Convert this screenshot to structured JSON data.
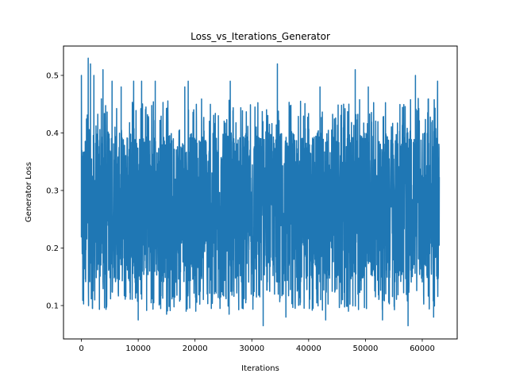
{
  "chart_data": {
    "type": "line",
    "title": "Loss_vs_Iterations_Generator",
    "xlabel": "Iterations",
    "ylabel": "Generator Loss",
    "xlim": [
      -3150,
      66150
    ],
    "ylim": [
      0.042,
      0.551
    ],
    "xticks": [
      0,
      10000,
      20000,
      30000,
      40000,
      50000,
      60000
    ],
    "xtick_labels": [
      "0",
      "10000",
      "20000",
      "30000",
      "40000",
      "50000",
      "60000"
    ],
    "yticks": [
      0.1,
      0.2,
      0.3,
      0.4,
      0.5
    ],
    "ytick_labels": [
      "0.1",
      "0.2",
      "0.3",
      "0.4",
      "0.5"
    ],
    "grid": false,
    "series": [
      {
        "name": "Generator Loss",
        "color": "#1f77b4",
        "x_range": [
          0,
          63000
        ],
        "approx_stats": {
          "typical_min": 0.1,
          "typical_max": 0.42,
          "overall_min": 0.065,
          "overall_max": 0.53,
          "center": 0.24
        },
        "peaks": [
          {
            "x": 0,
            "y": 0.5
          },
          {
            "x": 1200,
            "y": 0.53
          },
          {
            "x": 1600,
            "y": 0.52
          },
          {
            "x": 2200,
            "y": 0.5
          },
          {
            "x": 3800,
            "y": 0.51
          },
          {
            "x": 5400,
            "y": 0.49
          },
          {
            "x": 7000,
            "y": 0.48
          },
          {
            "x": 9200,
            "y": 0.49
          },
          {
            "x": 10600,
            "y": 0.49
          },
          {
            "x": 13000,
            "y": 0.49
          },
          {
            "x": 18200,
            "y": 0.48
          },
          {
            "x": 18800,
            "y": 0.49
          },
          {
            "x": 26200,
            "y": 0.49
          },
          {
            "x": 34500,
            "y": 0.52
          },
          {
            "x": 42000,
            "y": 0.48
          },
          {
            "x": 48200,
            "y": 0.51
          },
          {
            "x": 50500,
            "y": 0.48
          },
          {
            "x": 58800,
            "y": 0.5
          },
          {
            "x": 62700,
            "y": 0.49
          }
        ],
        "troughs": [
          {
            "x": 10000,
            "y": 0.075
          },
          {
            "x": 15000,
            "y": 0.085
          },
          {
            "x": 26000,
            "y": 0.085
          },
          {
            "x": 32000,
            "y": 0.065
          },
          {
            "x": 36000,
            "y": 0.08
          },
          {
            "x": 43000,
            "y": 0.075
          },
          {
            "x": 53000,
            "y": 0.075
          },
          {
            "x": 57500,
            "y": 0.065
          },
          {
            "x": 62000,
            "y": 0.08
          }
        ]
      }
    ]
  }
}
